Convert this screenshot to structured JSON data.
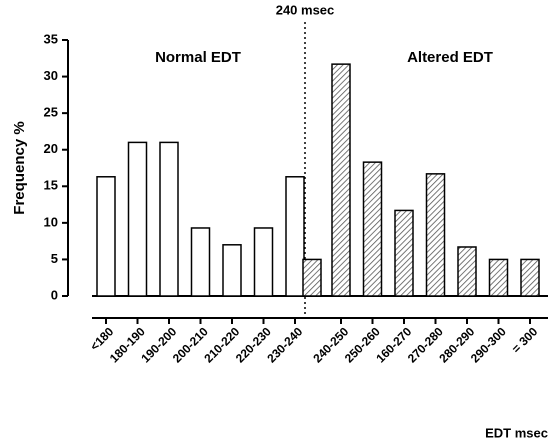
{
  "chart_data": {
    "type": "bar",
    "ylabel": "Frequency %",
    "xlabel": "EDT msec",
    "annotation": "240 msec",
    "categories": [
      "<180",
      "180-190",
      "190-200",
      "200-210",
      "210-220",
      "220-230",
      "230-240",
      null,
      "240-250",
      "250-260",
      "160-270",
      "270-280",
      "280-290",
      "290-300",
      "= 300"
    ],
    "series": [
      {
        "name": "Normal EDT",
        "color": "#ffffff",
        "values": [
          16.3,
          21,
          21,
          9.3,
          7,
          9.3,
          16.3,
          null,
          null,
          null,
          null,
          null,
          null,
          null,
          null
        ]
      },
      {
        "name": "Altered EDT",
        "color": "#555555",
        "values": [
          null,
          null,
          null,
          null,
          null,
          null,
          null,
          5,
          31.7,
          18.3,
          11.7,
          16.7,
          6.7,
          5,
          5
        ]
      }
    ],
    "ylim": [
      0,
      35
    ],
    "yticks": [
      0,
      5,
      10,
      15,
      20,
      25,
      30,
      35
    ]
  }
}
